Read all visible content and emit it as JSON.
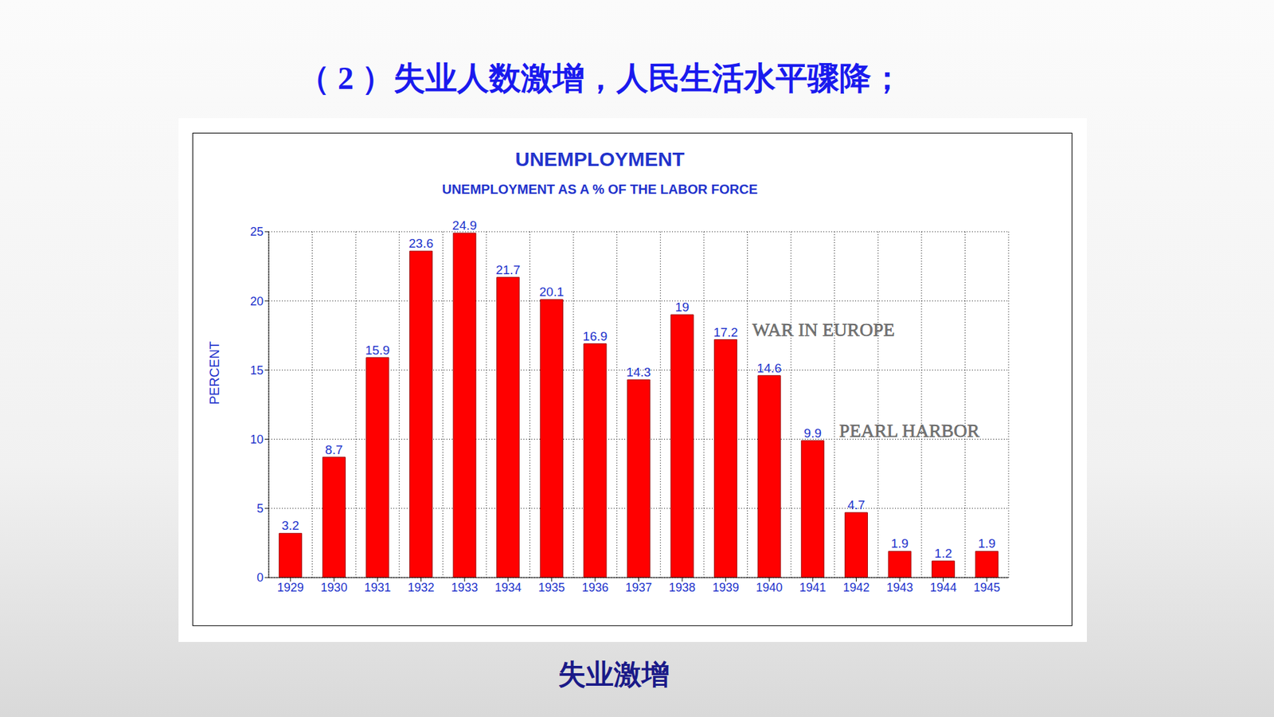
{
  "heading": "（ 2 ）失业人数激增，人民生活水平骤降；",
  "caption": "失业激增",
  "chart_data": {
    "type": "bar",
    "title": "UNEMPLOYMENT",
    "subtitle": "UNEMPLOYMENT AS A % OF THE LABOR FORCE",
    "y_label": "PERCENT",
    "categories": [
      "1929",
      "1930",
      "1931",
      "1932",
      "1933",
      "1934",
      "1935",
      "1936",
      "1937",
      "1938",
      "1939",
      "1940",
      "1941",
      "1942",
      "1943",
      "1944",
      "1945"
    ],
    "values": [
      3.2,
      8.7,
      15.9,
      23.6,
      24.9,
      21.7,
      20.1,
      16.9,
      14.3,
      19,
      17.2,
      14.6,
      9.9,
      4.7,
      1.9,
      1.2,
      1.9
    ],
    "color": "#ff0000",
    "ylim": [
      0,
      25
    ],
    "yticks": [
      0,
      5,
      10,
      15,
      20,
      25
    ],
    "grid": true,
    "data_labels": true,
    "annotations": [
      {
        "text": "WAR IN EUROPE",
        "x": "1939",
        "y": 17.2
      },
      {
        "text": "PEARL HARBOR",
        "x": "1941",
        "y": 9.9
      }
    ]
  }
}
